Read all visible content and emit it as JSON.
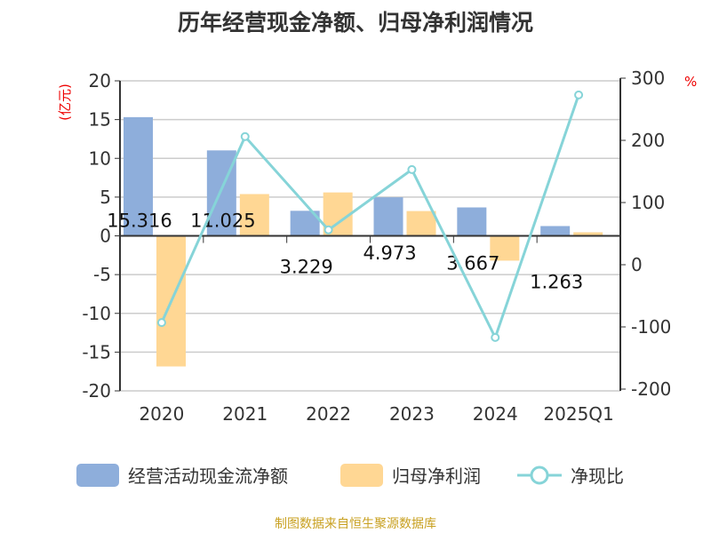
{
  "chart_data": {
    "type": "bar+line",
    "title": "历年经营现金净额、归母净利润情况",
    "categories": [
      "2020",
      "2021",
      "2022",
      "2023",
      "2024",
      "2025Q1"
    ],
    "left_unit": "(亿元)",
    "right_unit": "%",
    "left_ylim": [
      -20,
      20
    ],
    "left_ticks": [
      "20",
      "15",
      "10",
      "5",
      "0",
      "-5",
      "-10",
      "-15",
      "-20"
    ],
    "right_ylim": [
      -200,
      300
    ],
    "right_ticks": [
      "300",
      "200",
      "100",
      "0",
      "-100",
      "-200"
    ],
    "series": [
      {
        "name": "经营活动现金流净额",
        "type": "bar",
        "axis": "left",
        "color": "#8eaedb",
        "values": [
          15.316,
          11.025,
          3.229,
          4.973,
          3.667,
          1.263
        ],
        "labels": [
          "15.316",
          "11.025",
          "3.229",
          "4.973",
          "3.667",
          "1.263"
        ]
      },
      {
        "name": "归母净利润",
        "type": "bar",
        "axis": "left",
        "color": "#ffd794",
        "values": [
          -16.85,
          5.39,
          5.6,
          3.2,
          -3.2,
          0.46
        ]
      },
      {
        "name": "净现比",
        "type": "line",
        "axis": "right",
        "color": "#86d4d8",
        "values": [
          -93,
          206,
          56,
          153,
          -117,
          273
        ]
      }
    ],
    "grid": true,
    "legend_position": "bottom"
  },
  "source": "制图数据来自恒生聚源数据库"
}
